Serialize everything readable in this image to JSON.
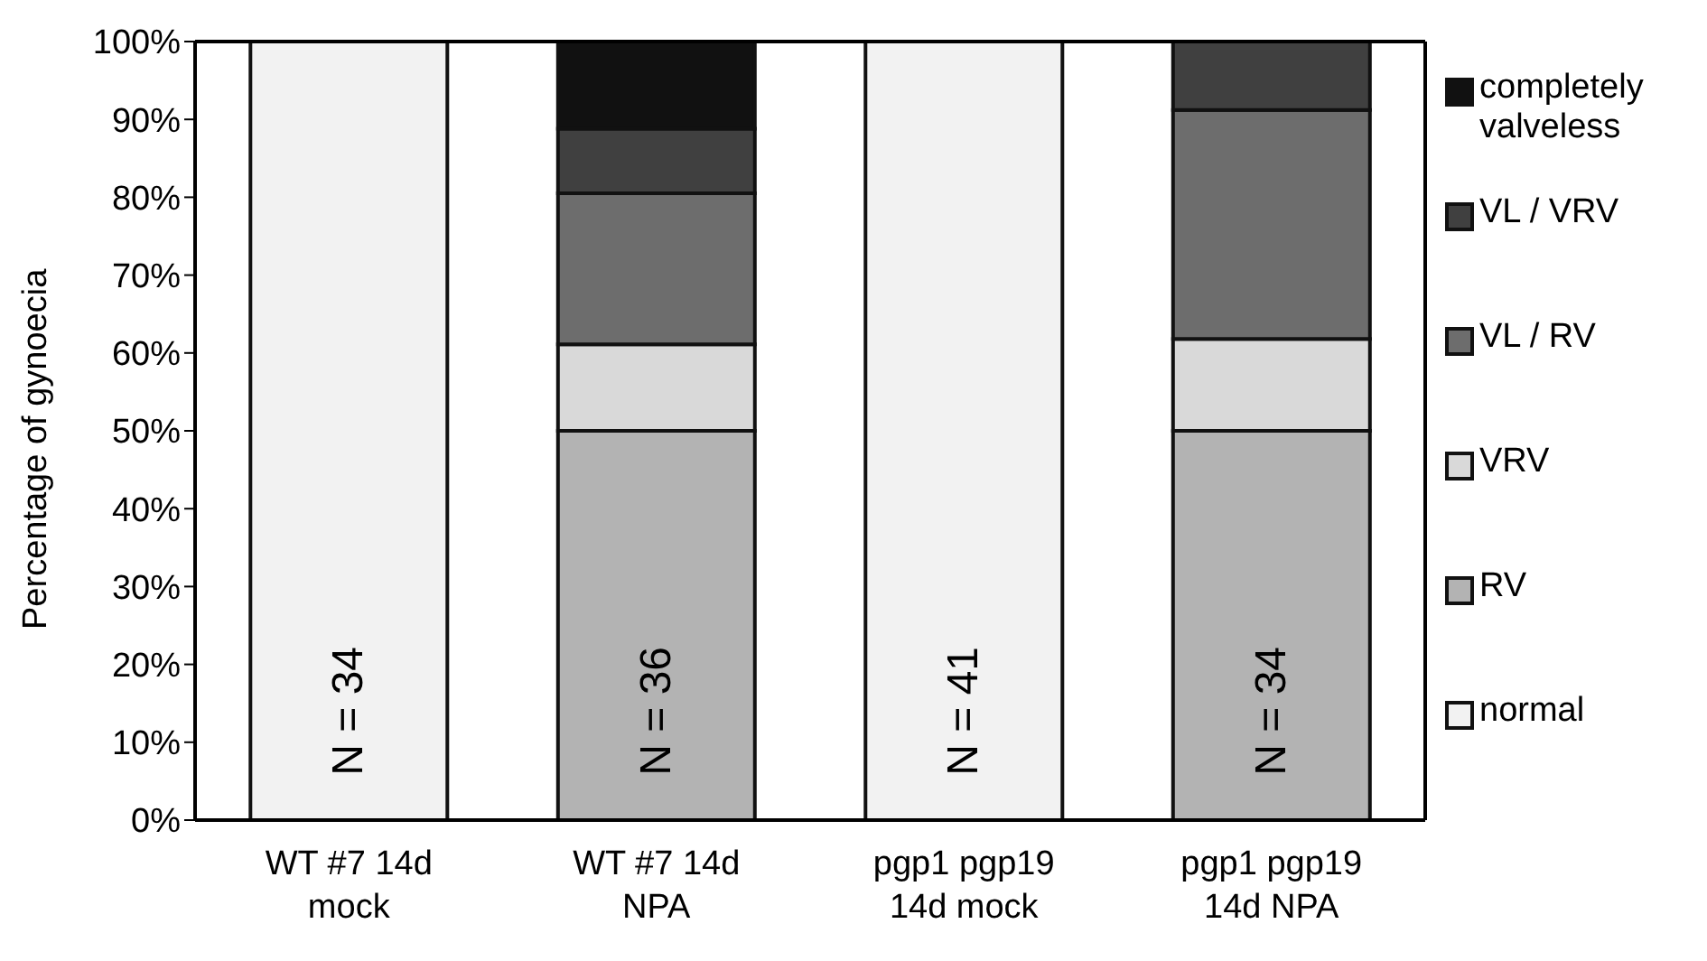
{
  "chart_data": {
    "type": "bar",
    "stacked": true,
    "ylabel": "Percentage of gynoecia",
    "categories": [
      "WT #7 14d mock",
      "WT #7 14d NPA",
      "pgp1 pgp19 14d mock",
      "pgp1 pgp19 14d NPA"
    ],
    "series": [
      {
        "name": "normal",
        "color": "#f2f2f2",
        "values": [
          100,
          0,
          100,
          0
        ]
      },
      {
        "name": "RV",
        "color": "#b3b3b3",
        "values": [
          0,
          50,
          0,
          50
        ]
      },
      {
        "name": "VRV",
        "color": "#d9d9d9",
        "values": [
          0,
          11.1,
          0,
          11.8
        ]
      },
      {
        "name": "VL / RV",
        "color": "#6d6d6d",
        "values": [
          0,
          19.4,
          0,
          29.4
        ]
      },
      {
        "name": "VL / VRV",
        "color": "#404040",
        "values": [
          0,
          8.3,
          0,
          8.8
        ]
      },
      {
        "name": "completely valveless",
        "color": "#111111",
        "values": [
          0,
          11.1,
          0,
          0
        ]
      }
    ],
    "ylim": [
      0,
      100
    ],
    "yticks": [
      {
        "value": 0,
        "label": "0%"
      },
      {
        "value": 10,
        "label": "10%"
      },
      {
        "value": 20,
        "label": "20%"
      },
      {
        "value": 30,
        "label": "30%"
      },
      {
        "value": 40,
        "label": "40%"
      },
      {
        "value": 50,
        "label": "50%"
      },
      {
        "value": 60,
        "label": "60%"
      },
      {
        "value": 70,
        "label": "70%"
      },
      {
        "value": 80,
        "label": "80%"
      },
      {
        "value": 90,
        "label": "90%"
      },
      {
        "value": 100,
        "label": "100%"
      }
    ],
    "legend": "right",
    "annotations": [
      "N = 34",
      "N = 36",
      "N = 41",
      "N = 34"
    ]
  }
}
